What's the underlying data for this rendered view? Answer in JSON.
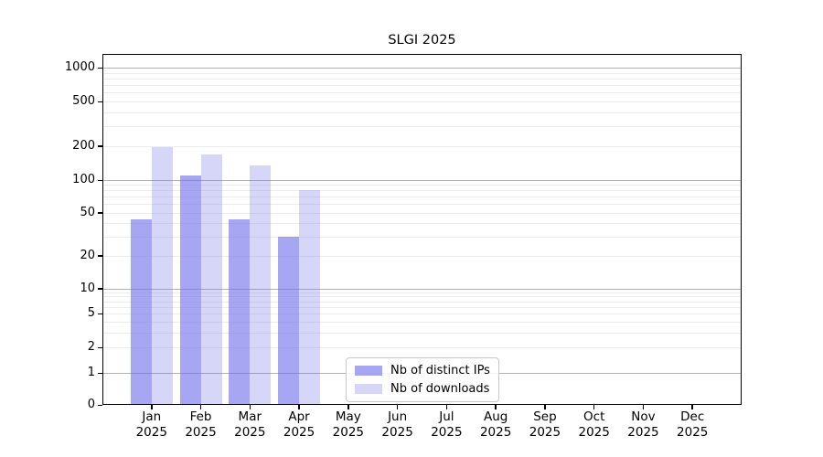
{
  "chart_data": {
    "type": "bar",
    "title": "SLGI 2025",
    "categories": [
      {
        "month": "Jan",
        "year": "2025"
      },
      {
        "month": "Feb",
        "year": "2025"
      },
      {
        "month": "Mar",
        "year": "2025"
      },
      {
        "month": "Apr",
        "year": "2025"
      },
      {
        "month": "May",
        "year": "2025"
      },
      {
        "month": "Jun",
        "year": "2025"
      },
      {
        "month": "Jul",
        "year": "2025"
      },
      {
        "month": "Aug",
        "year": "2025"
      },
      {
        "month": "Sep",
        "year": "2025"
      },
      {
        "month": "Oct",
        "year": "2025"
      },
      {
        "month": "Nov",
        "year": "2025"
      },
      {
        "month": "Dec",
        "year": "2025"
      }
    ],
    "series": [
      {
        "name": "Nb of distinct IPs",
        "base_color": "#6b6be9",
        "alpha": 0.6,
        "values": [
          43,
          110,
          43,
          30,
          null,
          null,
          null,
          null,
          null,
          null,
          null,
          null
        ]
      },
      {
        "name": "Nb of downloads",
        "base_color": "#6b6be9",
        "alpha": 0.28,
        "values": [
          195,
          170,
          135,
          80,
          null,
          null,
          null,
          null,
          null,
          null,
          null,
          null
        ]
      }
    ],
    "y_axis": {
      "scale": "symlog",
      "tick_values": [
        0,
        1,
        2,
        5,
        10,
        20,
        50,
        100,
        200,
        500,
        1000
      ],
      "tick_labels": [
        "0",
        "1",
        "2",
        "5",
        "10",
        "20",
        "50",
        "100",
        "200",
        "500",
        "1000"
      ]
    },
    "grid": {
      "major_color": "#b3b3b3",
      "minor_color": "#ececec"
    },
    "legend": {
      "position": "lower-center"
    },
    "colors": {
      "background": "#ffffff",
      "spine": "#000000"
    }
  }
}
